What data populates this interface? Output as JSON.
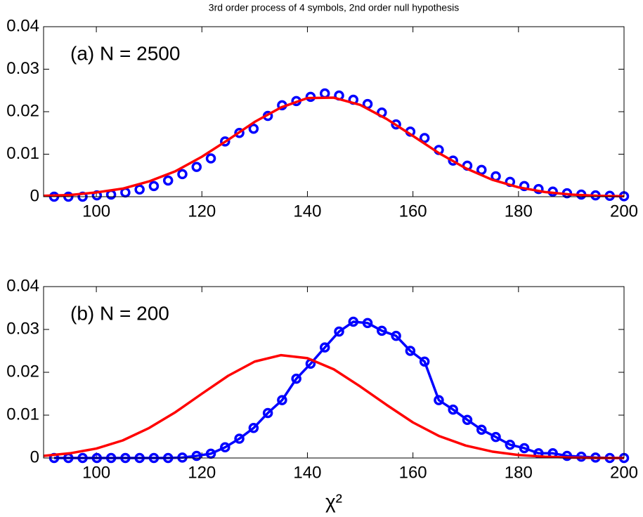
{
  "chart_data": [
    {
      "type": "line",
      "title": "3rd order process of 4 symbols, 2nd order null hypothesis",
      "annotation": "(a) N = 2500",
      "xlim": [
        90,
        200
      ],
      "xticks": [
        100,
        120,
        140,
        160,
        180,
        200
      ],
      "ylim": [
        0,
        0.04
      ],
      "yticks": [
        0,
        0.01,
        0.02,
        0.03,
        0.04
      ],
      "series": [
        {
          "color": "#0000ff",
          "marker": "circle",
          "line": false,
          "x": [
            92,
            94.7,
            97.4,
            100.1,
            102.8,
            105.5,
            108.2,
            110.9,
            113.6,
            116.3,
            119,
            121.7,
            124.4,
            127.1,
            129.8,
            132.5,
            135.2,
            137.9,
            140.6,
            143.3,
            146,
            148.7,
            151.4,
            154.1,
            156.8,
            159.5,
            162.2,
            164.9,
            167.6,
            170.3,
            173,
            175.7,
            178.4,
            181.1,
            183.8,
            186.5,
            189.2,
            191.9,
            194.6,
            197.3,
            200
          ],
          "values": [
            0,
            0,
            0,
            0.0003,
            0.0005,
            0.001,
            0.0017,
            0.0025,
            0.0038,
            0.0053,
            0.007,
            0.009,
            0.013,
            0.015,
            0.016,
            0.019,
            0.0215,
            0.0225,
            0.0235,
            0.0243,
            0.0238,
            0.0228,
            0.0218,
            0.0198,
            0.017,
            0.0153,
            0.0138,
            0.011,
            0.0085,
            0.0073,
            0.0063,
            0.0048,
            0.0035,
            0.0025,
            0.0018,
            0.0012,
            0.0008,
            0.0005,
            0.0003,
            0.0002,
            0.0001
          ]
        },
        {
          "color": "#ff0000",
          "marker": "none",
          "line": true,
          "x": [
            90,
            95,
            100,
            105,
            110,
            115,
            120,
            125,
            130,
            135,
            140,
            145,
            150,
            155,
            160,
            165,
            170,
            175,
            180,
            185,
            190,
            195,
            200
          ],
          "values": [
            0.0002,
            0.0004,
            0.001,
            0.0019,
            0.0036,
            0.006,
            0.0094,
            0.0134,
            0.0176,
            0.021,
            0.0232,
            0.0233,
            0.0216,
            0.0183,
            0.0143,
            0.0102,
            0.0067,
            0.004,
            0.0022,
            0.0011,
            0.0005,
            0.0002,
            0.0001
          ]
        }
      ]
    },
    {
      "type": "line",
      "annotation": "(b) N = 200",
      "x_label": "χ²",
      "xlim": [
        90,
        200
      ],
      "xticks": [
        100,
        120,
        140,
        160,
        180,
        200
      ],
      "ylim": [
        0,
        0.04
      ],
      "yticks": [
        0,
        0.01,
        0.02,
        0.03,
        0.04
      ],
      "series": [
        {
          "color": "#0000ff",
          "marker": "circle",
          "line": true,
          "x": [
            92,
            94.7,
            97.4,
            100.1,
            102.8,
            105.5,
            108.2,
            110.9,
            113.6,
            116.3,
            119,
            121.7,
            124.4,
            127.1,
            129.8,
            132.5,
            135.2,
            137.9,
            140.6,
            143.3,
            146,
            148.7,
            151.4,
            154.1,
            156.8,
            159.5,
            162.2,
            164.9,
            167.6,
            170.3,
            173,
            175.7,
            178.4,
            181.1,
            183.8,
            186.5,
            189.2,
            191.9,
            194.6,
            197.3,
            200
          ],
          "values": [
            0,
            0,
            0,
            0,
            0,
            0,
            0,
            0,
            0,
            0.0001,
            0.0005,
            0.001,
            0.0025,
            0.0045,
            0.007,
            0.0105,
            0.0135,
            0.0185,
            0.022,
            0.0258,
            0.0295,
            0.0318,
            0.0315,
            0.0297,
            0.0285,
            0.025,
            0.0225,
            0.0135,
            0.0113,
            0.0089,
            0.0066,
            0.0049,
            0.0031,
            0.0023,
            0.0011,
            0.0011,
            0.0005,
            0.0003,
            0.0001,
            0,
            0
          ]
        },
        {
          "color": "#ff0000",
          "marker": "none",
          "line": true,
          "x": [
            90,
            95,
            100,
            105,
            110,
            115,
            120,
            125,
            130,
            135,
            140,
            145,
            150,
            155,
            160,
            165,
            170,
            175,
            180,
            185,
            190,
            195,
            200
          ],
          "values": [
            0.0005,
            0.0011,
            0.0022,
            0.0041,
            0.007,
            0.0107,
            0.015,
            0.0192,
            0.0225,
            0.024,
            0.0233,
            0.0207,
            0.0167,
            0.0124,
            0.0083,
            0.0051,
            0.0029,
            0.0015,
            0.0007,
            0.0003,
            0.0001,
            0,
            0
          ]
        }
      ]
    }
  ]
}
